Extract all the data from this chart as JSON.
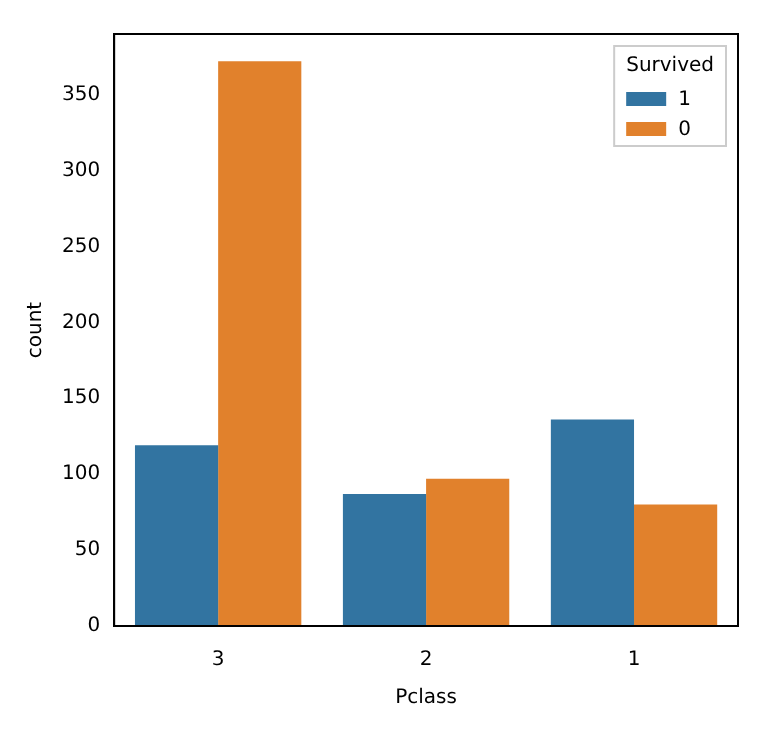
{
  "chart_data": {
    "type": "bar",
    "xlabel": "Pclass",
    "ylabel": "count",
    "legend_title": "Survived",
    "categories": [
      "3",
      "2",
      "1"
    ],
    "series": [
      {
        "name": "1",
        "color": "#3274a1",
        "values": [
          119,
          87,
          136
        ]
      },
      {
        "name": "0",
        "color": "#e1812c",
        "values": [
          372,
          97,
          80
        ]
      }
    ],
    "ylim": [
      0,
      390
    ],
    "yticks": [
      0,
      50,
      100,
      150,
      200,
      250,
      300,
      350
    ],
    "grid": false,
    "legend": "top right"
  }
}
